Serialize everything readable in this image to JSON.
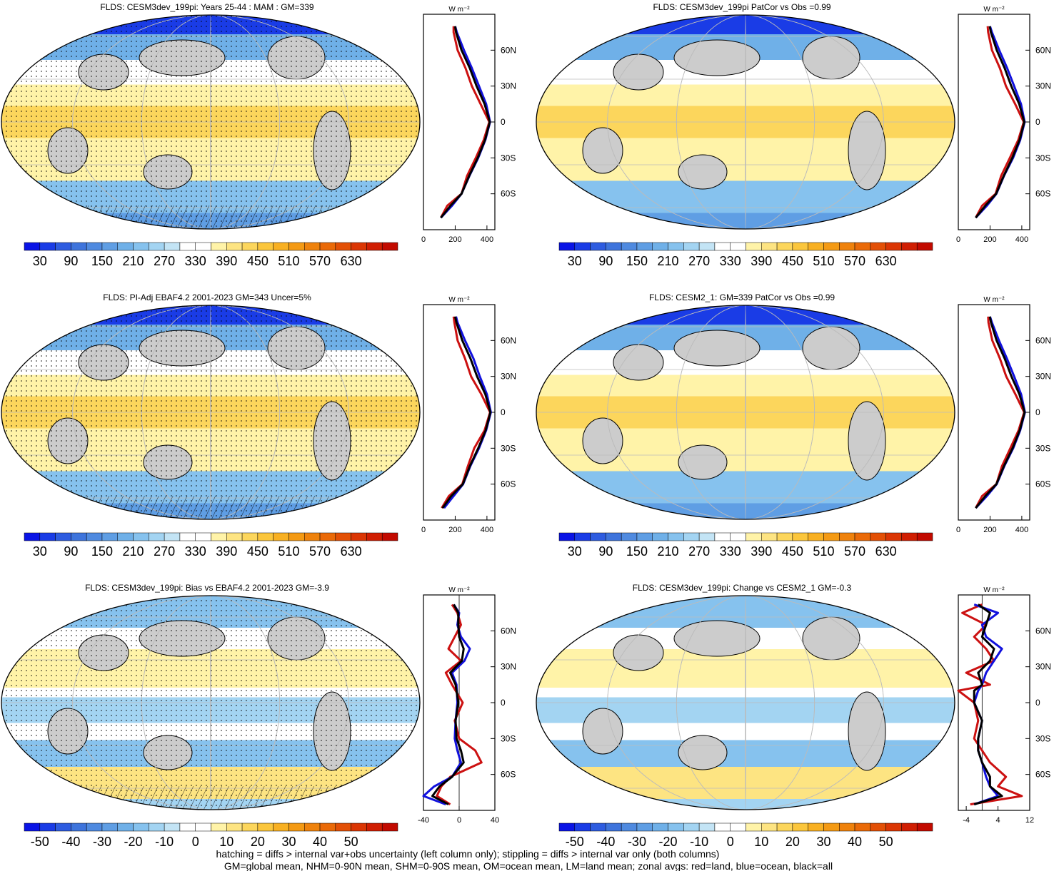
{
  "footer": {
    "line1": "hatching = diffs > internal var+obs uncertainty (left column only); stippling = diffs > internal var only (both columns)",
    "line2": "GM=global mean, NHM=0-90N mean, SHM=0-90S mean, OM=ocean mean, LM=land mean; zonal avgs: red=land, blue=ocean, black=all"
  },
  "colors": {
    "land": "#cc1111",
    "ocean": "#1111dd",
    "all": "#000000",
    "missing": "#cccccc"
  },
  "lat_ticks": [
    "60N",
    "30N",
    "0",
    "30S",
    "60S"
  ],
  "units": "W m⁻²",
  "colorbars": {
    "abs": {
      "labels": [
        "30",
        "90",
        "150",
        "210",
        "270",
        "330",
        "390",
        "450",
        "510",
        "570",
        "630"
      ],
      "colors": [
        "#0a14e6",
        "#1a3ce6",
        "#2e5ce0",
        "#3e74dc",
        "#4f8ae0",
        "#5f9ee4",
        "#6fb0e8",
        "#86c2ee",
        "#a3d4f2",
        "#c3e4f5",
        "#ffffff",
        "#ffffff",
        "#fff3a8",
        "#fde482",
        "#fcd65c",
        "#fbc63c",
        "#f8b022",
        "#f49a14",
        "#ef820c",
        "#ea6a08",
        "#e35006",
        "#db3604",
        "#d01e02",
        "#c20a00"
      ]
    },
    "diff": {
      "labels": [
        "-50",
        "-40",
        "-30",
        "-20",
        "-10",
        "0",
        "10",
        "20",
        "30",
        "40",
        "50"
      ],
      "colors": [
        "#0a14e6",
        "#1a3ce6",
        "#2e5ce0",
        "#3e74dc",
        "#4f8ae0",
        "#5f9ee4",
        "#6fb0e8",
        "#86c2ee",
        "#a3d4f2",
        "#c3e4f5",
        "#ffffff",
        "#ffffff",
        "#fff3a8",
        "#fde482",
        "#fcd65c",
        "#fbc63c",
        "#f8b022",
        "#f49a14",
        "#ef820c",
        "#ea6a08",
        "#e35006",
        "#db3604",
        "#d01e02",
        "#c20a00"
      ]
    }
  },
  "chart_data": [
    {
      "type": "heatmap",
      "title": "FLDS: CESM3dev_199pi: Years 25-44 : MAM : GM=339",
      "colorbar": "abs",
      "zonal_avg": {
        "type": "line",
        "xlim": [
          0,
          450
        ],
        "x_ticks": [
          0,
          200,
          400
        ],
        "ylabel": "W m⁻²",
        "lat": [
          -80,
          -70,
          -60,
          -45,
          -30,
          -15,
          0,
          15,
          30,
          45,
          60,
          75,
          80
        ],
        "series": [
          {
            "name": "land",
            "values": [
              110,
              150,
              240,
              275,
              330,
              380,
              415,
              360,
              305,
              265,
              215,
              190,
              190
            ]
          },
          {
            "name": "ocean",
            "values": [
              110,
              180,
              240,
              290,
              345,
              390,
              420,
              395,
              350,
              305,
              255,
              210,
              200
            ]
          },
          {
            "name": "all",
            "values": [
              110,
              170,
              240,
              288,
              342,
              388,
              418,
              385,
              335,
              292,
              240,
              205,
              200
            ]
          }
        ]
      }
    },
    {
      "type": "heatmap",
      "title": "FLDS: CESM3dev_199pi PatCor vs Obs =0.99",
      "colorbar": "abs",
      "zonal_avg": {
        "type": "line",
        "xlim": [
          0,
          450
        ],
        "x_ticks": [
          0,
          200,
          400
        ],
        "ylabel": "W m⁻²",
        "lat": [
          -80,
          -70,
          -60,
          -45,
          -30,
          -15,
          0,
          15,
          30,
          45,
          60,
          75,
          80
        ],
        "series": [
          {
            "name": "land",
            "values": [
              110,
              150,
              235,
              270,
              325,
              378,
              412,
              358,
              300,
              262,
              212,
              188,
              185
            ]
          },
          {
            "name": "ocean",
            "values": [
              110,
              180,
              240,
              288,
              345,
              390,
              418,
              395,
              352,
              308,
              258,
              212,
              200
            ]
          },
          {
            "name": "all",
            "values": [
              110,
              170,
              238,
              286,
              340,
              386,
              416,
              384,
              334,
              292,
              242,
              205,
              198
            ]
          }
        ]
      }
    },
    {
      "type": "heatmap",
      "title": "FLDS: PI-Adj EBAF4.2 2001-2023 GM=343 Uncer=5%",
      "colorbar": "abs",
      "zonal_avg": {
        "type": "line",
        "xlim": [
          0,
          450
        ],
        "x_ticks": [
          0,
          200,
          400
        ],
        "ylabel": "W m⁻²",
        "lat": [
          -80,
          -70,
          -60,
          -45,
          -30,
          -15,
          0,
          15,
          30,
          45,
          60,
          75,
          80
        ],
        "series": [
          {
            "name": "land",
            "values": [
              115,
              160,
              245,
              280,
              320,
              385,
              420,
              365,
              300,
              262,
              215,
              195,
              190
            ]
          },
          {
            "name": "ocean",
            "values": [
              130,
              190,
              250,
              295,
              350,
              395,
              425,
              400,
              355,
              315,
              262,
              215,
              205
            ]
          },
          {
            "name": "all",
            "values": [
              120,
              175,
              248,
              292,
              345,
              392,
              422,
              390,
              338,
              296,
              245,
              208,
              200
            ]
          }
        ]
      }
    },
    {
      "type": "heatmap",
      "title": "FLDS: CESM2_1: GM=339 PatCor vs Obs =0.99",
      "colorbar": "abs",
      "zonal_avg": {
        "type": "line",
        "xlim": [
          0,
          450
        ],
        "x_ticks": [
          0,
          200,
          400
        ],
        "ylabel": "W m⁻²",
        "lat": [
          -80,
          -70,
          -60,
          -45,
          -30,
          -15,
          0,
          15,
          30,
          45,
          60,
          75,
          80
        ],
        "series": [
          {
            "name": "land",
            "values": [
              110,
              150,
              240,
              275,
              328,
              380,
              415,
              360,
              302,
              262,
              214,
              190,
              188
            ]
          },
          {
            "name": "ocean",
            "values": [
              110,
              180,
              242,
              290,
              346,
              390,
              420,
              396,
              352,
              306,
              256,
              212,
              200
            ]
          },
          {
            "name": "all",
            "values": [
              110,
              170,
              240,
              287,
              342,
              387,
              418,
              385,
              335,
              292,
              241,
              206,
              199
            ]
          }
        ]
      }
    },
    {
      "type": "heatmap",
      "title": "FLDS: CESM3dev_199pi: Bias vs EBAF4.2 2001-2023 GM=-3.9",
      "colorbar": "diff",
      "zonal_avg": {
        "type": "line",
        "xlim": [
          -40,
          40
        ],
        "x_ticks": [
          -40,
          0,
          40
        ],
        "ylabel": "W m⁻²",
        "lat": [
          -85,
          -78,
          -70,
          -62,
          -50,
          -40,
          -30,
          -15,
          0,
          15,
          25,
          35,
          45,
          55,
          65,
          75,
          82
        ],
        "series": [
          {
            "name": "land",
            "values": [
              -10,
              -25,
              -20,
              -10,
              25,
              18,
              0,
              -5,
              4,
              -8,
              -15,
              2,
              -12,
              -5,
              2,
              -2,
              -8
            ]
          },
          {
            "name": "ocean",
            "values": [
              -15,
              -40,
              -28,
              -8,
              2,
              -2,
              -5,
              -4,
              -2,
              -3,
              -8,
              6,
              12,
              2,
              -2,
              0,
              -6
            ]
          },
          {
            "name": "all",
            "values": [
              -12,
              -30,
              -22,
              -8,
              5,
              2,
              -3,
              -4,
              -1,
              -4,
              -10,
              3,
              5,
              0,
              -1,
              -1,
              -6
            ]
          }
        ]
      }
    },
    {
      "type": "heatmap",
      "title": "FLDS: CESM3dev_199pi: Change vs CESM2_1 GM=-0.3",
      "colorbar": "diff",
      "zonal_avg": {
        "type": "line",
        "xlim": [
          -6,
          12
        ],
        "x_ticks": [
          -4,
          4,
          12
        ],
        "ylabel": "W m⁻²",
        "lat": [
          -85,
          -78,
          -70,
          -62,
          -50,
          -40,
          -30,
          -15,
          0,
          10,
          15,
          25,
          35,
          45,
          55,
          65,
          75,
          82
        ],
        "series": [
          {
            "name": "land",
            "values": [
              -3,
              10,
              4,
              6,
              2,
              0,
              -2,
              -1,
              -2,
              -6,
              2,
              -4,
              3,
              1,
              -2,
              1,
              -5,
              0
            ]
          },
          {
            "name": "ocean",
            "values": [
              -2,
              4,
              2,
              1,
              0,
              -1,
              -1,
              0,
              -2,
              -1,
              0,
              1,
              3,
              5,
              1,
              0,
              4,
              -2
            ]
          },
          {
            "name": "all",
            "values": [
              -2,
              5,
              2,
              2,
              0,
              -1,
              -1,
              0,
              -2,
              -2,
              0,
              -1,
              2,
              3,
              0,
              1,
              2,
              -1
            ]
          }
        ]
      }
    }
  ]
}
